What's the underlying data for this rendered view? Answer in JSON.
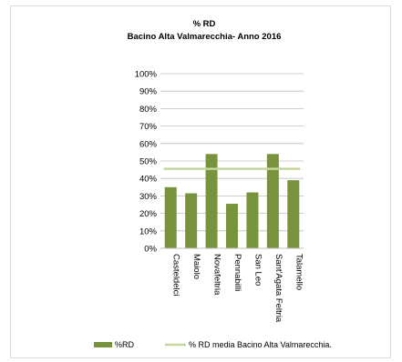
{
  "chart_data": {
    "type": "bar",
    "title": "% RD",
    "subtitle": "Bacino Alta Valmarecchia- Anno 2016",
    "categories": [
      "Casteldelci",
      "Maiolo",
      "Novafeltria",
      "Pennabilli",
      "San Leo",
      "Sant'Agata Feltria",
      "Talamello"
    ],
    "series": [
      {
        "name": "%RD",
        "values": [
          35,
          31.5,
          54,
          25.5,
          32,
          54,
          39
        ]
      }
    ],
    "reference_line": {
      "name": "% RD media Bacino Alta Valmarecchia.",
      "value": 45.5
    },
    "ylim": [
      0,
      100
    ],
    "yticks": [
      "0%",
      "10%",
      "20%",
      "30%",
      "40%",
      "50%",
      "60%",
      "70%",
      "80%",
      "90%",
      "100%"
    ],
    "grid": true,
    "legend_position": "bottom",
    "colors": {
      "bar": "#77933c",
      "line": "#c3d69b",
      "grid": "#bfbfbf"
    }
  }
}
